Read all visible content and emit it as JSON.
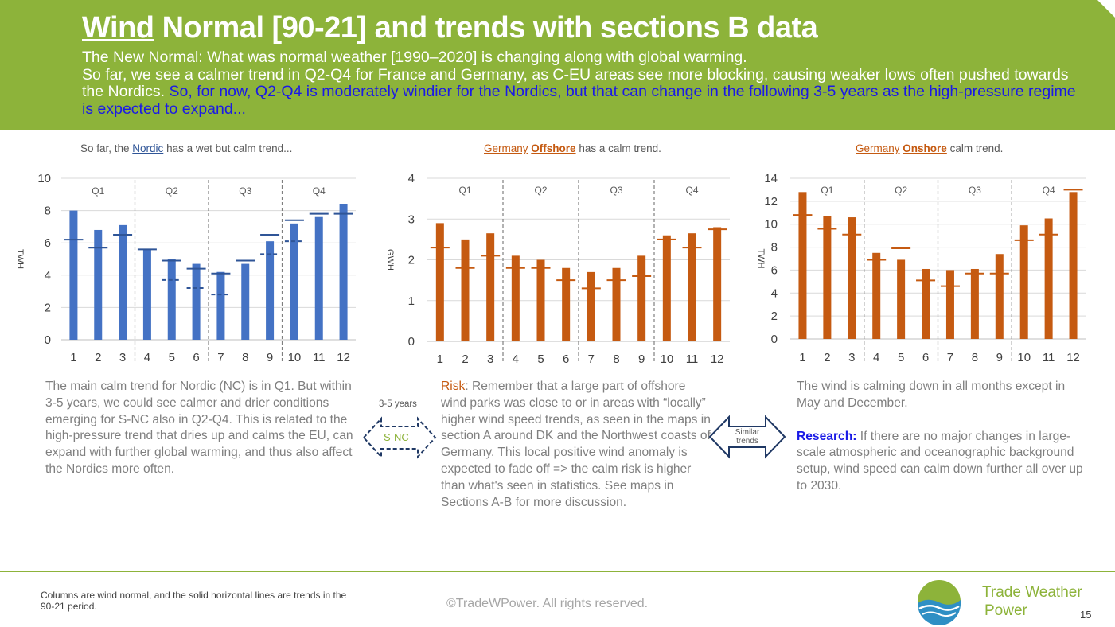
{
  "header": {
    "title_part1": "Wind",
    "title_part2": " Normal [90-21] and trends with sections B data",
    "subtitle_line1": "The New Normal: What was normal weather [1990–2020] is changing along with global warming.",
    "subtitle_line2": "So far, we see a calmer trend in Q2-Q4 for France and Germany, as C-EU areas see more blocking, causing weaker lows often pushed towards the Nordics.",
    "subtitle_highlight": "So, for now, Q2-Q4 is moderately windier for the Nordics, but that can change in the following 3-5 years as the high-pressure regime is expected to expand..."
  },
  "captions": {
    "nordic_pre": "So far, the ",
    "nordic_kw": "Nordic",
    "nordic_post": " has a wet but calm trend...",
    "off_kw1": "Germany",
    "off_kw2": "Offshore",
    "off_post": " has a calm trend.",
    "on_kw1": "Germany",
    "on_kw2": "Onshore",
    "on_post": " calm trend."
  },
  "chart_data": [
    {
      "id": "nordic",
      "type": "bar",
      "categories": [
        "1",
        "2",
        "3",
        "4",
        "5",
        "6",
        "7",
        "8",
        "9",
        "10",
        "11",
        "12"
      ],
      "series": [
        {
          "values": [
            8.0,
            6.8,
            7.1,
            5.6,
            5.0,
            4.7,
            4.2,
            4.7,
            6.1,
            7.2,
            7.6,
            8.4
          ]
        }
      ],
      "trend_solid": [
        6.2,
        5.7,
        6.5,
        5.6,
        4.9,
        4.4,
        4.1,
        4.9,
        6.5,
        7.4,
        7.8,
        7.8
      ],
      "trend_dashed": [
        null,
        null,
        null,
        null,
        3.7,
        3.2,
        2.8,
        null,
        5.3,
        6.1,
        null,
        null
      ],
      "quarters": [
        "Q1",
        "Q2",
        "Q3",
        "Q4"
      ],
      "ylabel": "TWH",
      "ylim": [
        0,
        10
      ],
      "yticks": [
        0,
        2,
        4,
        6,
        8,
        10
      ],
      "bar_color": "#4472c4",
      "trend_color": "#2f5597"
    },
    {
      "id": "offshore",
      "type": "bar",
      "categories": [
        "1",
        "2",
        "3",
        "4",
        "5",
        "6",
        "7",
        "8",
        "9",
        "10",
        "11",
        "12"
      ],
      "series": [
        {
          "values": [
            2.9,
            2.5,
            2.65,
            2.1,
            2.0,
            1.8,
            1.7,
            1.8,
            2.1,
            2.6,
            2.65,
            2.8
          ]
        }
      ],
      "trend_solid": [
        2.3,
        1.8,
        2.1,
        1.8,
        1.8,
        1.5,
        1.3,
        1.5,
        1.6,
        2.5,
        2.3,
        2.75
      ],
      "trend_dashed": [],
      "quarters": [
        "Q1",
        "Q2",
        "Q3",
        "Q4"
      ],
      "ylabel": "GWH",
      "ylim": [
        0,
        4
      ],
      "yticks": [
        0,
        1,
        2,
        3,
        4
      ],
      "bar_color": "#c55a11",
      "trend_color": "#c55a11"
    },
    {
      "id": "onshore",
      "type": "bar",
      "categories": [
        "1",
        "2",
        "3",
        "4",
        "5",
        "6",
        "7",
        "8",
        "9",
        "10",
        "11",
        "12"
      ],
      "series": [
        {
          "values": [
            12.8,
            10.7,
            10.6,
            7.5,
            6.9,
            6.1,
            6.0,
            6.1,
            7.4,
            9.9,
            10.5,
            12.8
          ]
        }
      ],
      "trend_solid": [
        10.8,
        9.6,
        9.1,
        6.9,
        7.9,
        5.1,
        4.6,
        5.7,
        5.7,
        8.6,
        9.1,
        13.0
      ],
      "trend_dashed": [],
      "quarters": [
        "Q1",
        "Q2",
        "Q3",
        "Q4"
      ],
      "ylabel": "TWH",
      "ylim": [
        0,
        14
      ],
      "yticks": [
        0,
        2,
        4,
        6,
        8,
        10,
        12,
        14
      ],
      "bar_color": "#c55a11",
      "trend_color": "#c55a11"
    }
  ],
  "paragraphs": {
    "nordic": "The main calm trend for Nordic (NC) is in Q1. But within 3-5 years, we could see calmer and drier conditions emerging for S-NC also in Q2-Q4. This is related to the high-pressure trend that dries up and calms the EU, can expand with further global warming, and thus also affect the Nordics more often.",
    "offshore_risk": "Risk",
    "offshore_body": ": Remember that a large part of offshore wind parks was close to or in areas with “locally” higher wind speed trends, as seen in the maps in section A around DK and the Northwest coasts of Germany. This local positive wind anomaly is expected to fade off => the calm risk is higher than what's seen in statistics. See maps in Sections A-B for more discussion.",
    "onshore_p1": "The wind is calming down in all months except in May and December.",
    "onshore_research": "Research:",
    "onshore_p2": " If there are no major changes in large-scale atmospheric and oceanographic background setup, wind speed can calm down further all over up to 2030."
  },
  "arrows": {
    "years_label": "3-5 years",
    "snc_label": "S-NC",
    "similar_line1": "Similar",
    "similar_line2": "trends"
  },
  "footer": {
    "footnote": "Columns are wind normal, and the solid horizontal lines are trends in the 90-21 period.",
    "copyright": "©TradeWPower. All rights reserved.",
    "brand_line1": "Trade Weather",
    "brand_line2": "Power",
    "page_number": "15"
  }
}
